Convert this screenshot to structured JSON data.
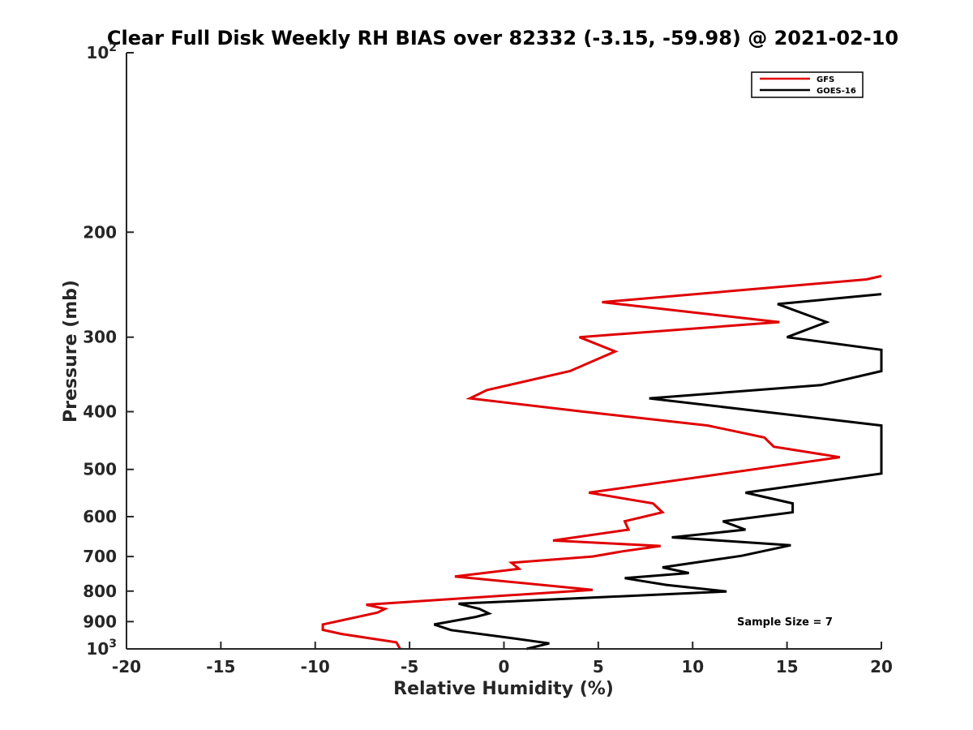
{
  "chart_data": {
    "type": "line",
    "title": "Clear Full Disk Weekly RH BIAS over 82332 (-3.15, -59.98) @ 2021-02-10",
    "xlabel": "Relative Humidity (%)",
    "ylabel": "Pressure (mb)",
    "xlim": [
      -20,
      20
    ],
    "ylim": [
      1000,
      100
    ],
    "yscale": "log",
    "y_reversed": true,
    "xticks": [
      "-20",
      "-15",
      "-10",
      "-5",
      "0",
      "5",
      "10",
      "15",
      "20"
    ],
    "yticks": [
      {
        "value": 100,
        "base": "10",
        "exp": "2"
      },
      {
        "value": 200,
        "label": "200"
      },
      {
        "value": 300,
        "label": "300"
      },
      {
        "value": 400,
        "label": "400"
      },
      {
        "value": 500,
        "label": "500"
      },
      {
        "value": 600,
        "label": "600"
      },
      {
        "value": 700,
        "label": "700"
      },
      {
        "value": 800,
        "label": "800"
      },
      {
        "value": 900,
        "label": "900"
      },
      {
        "value": 1000,
        "base": "10",
        "exp": "3"
      }
    ],
    "legend_position": "top-right",
    "grid": false,
    "series": [
      {
        "name": "GFS",
        "color": "#e00000",
        "points": [
          [
            20.0,
            237
          ],
          [
            19.2,
            240
          ],
          [
            5.2,
            262
          ],
          [
            14.6,
            283
          ],
          [
            4.0,
            300
          ],
          [
            5.9,
            317
          ],
          [
            3.5,
            342
          ],
          [
            -0.9,
            368
          ],
          [
            -1.8,
            380
          ],
          [
            4.2,
            400
          ],
          [
            10.8,
            422
          ],
          [
            13.8,
            442
          ],
          [
            14.3,
            458
          ],
          [
            17.8,
            477
          ],
          [
            4.5,
            547
          ],
          [
            7.9,
            570
          ],
          [
            8.4,
            590
          ],
          [
            6.4,
            611
          ],
          [
            6.6,
            631
          ],
          [
            2.6,
            658
          ],
          [
            8.3,
            672
          ],
          [
            6.3,
            686
          ],
          [
            4.7,
            700
          ],
          [
            0.4,
            717
          ],
          [
            0.8,
            734
          ],
          [
            -2.6,
            756
          ],
          [
            4.7,
            796
          ],
          [
            -7.3,
            843
          ],
          [
            -6.3,
            857
          ],
          [
            -6.7,
            869
          ],
          [
            -7.7,
            883
          ],
          [
            -9.6,
            910
          ],
          [
            -9.6,
            929
          ],
          [
            -8.6,
            944
          ],
          [
            -5.7,
            975
          ],
          [
            -5.5,
            1000
          ]
        ]
      },
      {
        "name": "GOES-16",
        "color": "#000000",
        "points": [
          [
            20.0,
            254
          ],
          [
            14.5,
            264
          ],
          [
            17.1,
            283
          ],
          [
            15.0,
            300
          ],
          [
            20.0,
            315
          ],
          [
            20.0,
            342
          ],
          [
            16.8,
            361
          ],
          [
            7.7,
            380
          ],
          [
            20.0,
            422
          ],
          [
            20.0,
            508
          ],
          [
            12.8,
            547
          ],
          [
            15.3,
            570
          ],
          [
            15.3,
            590
          ],
          [
            11.6,
            611
          ],
          [
            12.8,
            631
          ],
          [
            8.9,
            650
          ],
          [
            15.2,
            670
          ],
          [
            12.6,
            698
          ],
          [
            8.4,
            730
          ],
          [
            9.8,
            746
          ],
          [
            6.4,
            761
          ],
          [
            8.6,
            781
          ],
          [
            11.8,
            801
          ],
          [
            -2.4,
            840
          ],
          [
            -1.3,
            857
          ],
          [
            -0.8,
            872
          ],
          [
            -1.5,
            884
          ],
          [
            -3.7,
            910
          ],
          [
            -2.8,
            930
          ],
          [
            0.5,
            960
          ],
          [
            2.4,
            979
          ],
          [
            1.2,
            1000
          ]
        ]
      }
    ],
    "annotations": [
      "Sample Size = 7"
    ]
  }
}
